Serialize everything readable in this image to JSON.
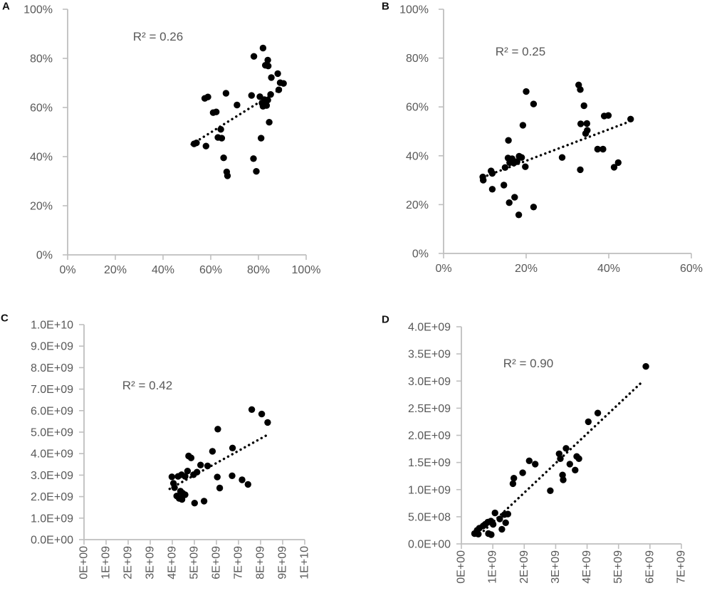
{
  "figure": {
    "background": "#ffffff",
    "text_color": "#595959",
    "axis_color": "#bfbfbf",
    "point_color": "#000000",
    "panel_letter_color": "#111111"
  },
  "chart_data": [
    {
      "panel": "A",
      "type": "scatter",
      "annotation": "R² = 0.26",
      "xlim": [
        0,
        100
      ],
      "ylim": [
        0,
        100
      ],
      "x_tick_values": [
        0,
        20,
        40,
        60,
        80,
        100
      ],
      "x_tick_labels": [
        "0%",
        "20%",
        "40%",
        "60%",
        "80%",
        "100%"
      ],
      "y_tick_values": [
        0,
        20,
        40,
        60,
        80,
        100
      ],
      "y_tick_labels": [
        "0%",
        "20%",
        "40%",
        "60%",
        "80%",
        "100%"
      ],
      "rotated_x_labels": false,
      "grid": false,
      "points": [
        [
          53,
          45.2
        ],
        [
          54,
          45.6
        ],
        [
          58,
          44.3
        ],
        [
          57.5,
          63.7
        ],
        [
          58.8,
          64.3
        ],
        [
          61,
          57.9
        ],
        [
          62.3,
          58.2
        ],
        [
          63,
          47.8
        ],
        [
          64.6,
          47.5
        ],
        [
          64.2,
          51.1
        ],
        [
          65.4,
          39.5
        ],
        [
          66.4,
          65.8
        ],
        [
          66.7,
          33.8
        ],
        [
          67,
          32.2
        ],
        [
          71,
          61
        ],
        [
          77.1,
          64.9
        ],
        [
          78.1,
          80.8
        ],
        [
          77.9,
          39.2
        ],
        [
          79.1,
          34
        ],
        [
          80.6,
          64.4
        ],
        [
          81.1,
          47.5
        ],
        [
          81.5,
          61.8
        ],
        [
          81.9,
          60.5
        ],
        [
          81.9,
          84.2
        ],
        [
          82.5,
          63.2
        ],
        [
          82.9,
          77.2
        ],
        [
          82.9,
          61.7
        ],
        [
          83.4,
          60.8
        ],
        [
          83.9,
          63
        ],
        [
          83.9,
          79.3
        ],
        [
          84.1,
          76.9
        ],
        [
          84.5,
          54
        ],
        [
          85.1,
          65.3
        ],
        [
          85.4,
          72.2
        ],
        [
          88.1,
          73.8
        ],
        [
          88.5,
          67.2
        ],
        [
          89.1,
          70.1
        ],
        [
          90.5,
          69.8
        ]
      ],
      "trendline": {
        "style": "dotted",
        "x1": 52,
        "y1": 45,
        "x2": 90,
        "y2": 68
      }
    },
    {
      "panel": "B",
      "type": "scatter",
      "annotation": "R² = 0.25",
      "xlim": [
        0,
        60
      ],
      "ylim": [
        0,
        100
      ],
      "x_tick_values": [
        0,
        20,
        40,
        60
      ],
      "x_tick_labels": [
        "0%",
        "20%",
        "40%",
        "60%"
      ],
      "y_tick_values": [
        0,
        20,
        40,
        60,
        80,
        100
      ],
      "y_tick_labels": [
        "0%",
        "20%",
        "40%",
        "60%",
        "80%",
        "100%"
      ],
      "rotated_x_labels": false,
      "grid": false,
      "points": [
        [
          9.5,
          31.3
        ],
        [
          9.6,
          30
        ],
        [
          11.5,
          33.8
        ],
        [
          11.8,
          32.8
        ],
        [
          11.8,
          26.3
        ],
        [
          14.6,
          28
        ],
        [
          14.9,
          35.2
        ],
        [
          15.6,
          39.1
        ],
        [
          15.7,
          46.3
        ],
        [
          15.9,
          20.8
        ],
        [
          16,
          37.2
        ],
        [
          16.6,
          38.8
        ],
        [
          17,
          37
        ],
        [
          17.2,
          23
        ],
        [
          17.8,
          37.6
        ],
        [
          18.2,
          15.8
        ],
        [
          18.3,
          39.8
        ],
        [
          18.9,
          39.3
        ],
        [
          19.2,
          52.5
        ],
        [
          19.8,
          35.5
        ],
        [
          20,
          66.3
        ],
        [
          21.8,
          61.2
        ],
        [
          21.8,
          19
        ],
        [
          28.7,
          39.3
        ],
        [
          32.7,
          69
        ],
        [
          33.1,
          67.1
        ],
        [
          33.1,
          34.3
        ],
        [
          33.2,
          53.1
        ],
        [
          34,
          60.5
        ],
        [
          34.4,
          49.1
        ],
        [
          34.7,
          53.2
        ],
        [
          34.8,
          50.4
        ],
        [
          37.3,
          42.7
        ],
        [
          38.6,
          42.7
        ],
        [
          38.9,
          56.3
        ],
        [
          39.9,
          56.5
        ],
        [
          41.3,
          35.3
        ],
        [
          42.3,
          37.2
        ],
        [
          45.3,
          55
        ]
      ],
      "trendline": {
        "style": "dotted",
        "x1": 9.5,
        "y1": 31.2,
        "x2": 45,
        "y2": 54
      }
    },
    {
      "panel": "C",
      "type": "scatter",
      "annotation": "R² = 0.42",
      "xlim": [
        0,
        10
      ],
      "ylim": [
        0,
        10
      ],
      "unit": "1E+09",
      "x_tick_values": [
        0,
        1,
        2,
        3,
        4,
        5,
        6,
        7,
        8,
        9,
        10
      ],
      "x_tick_labels": [
        "0E+00",
        "1E+09",
        "2E+09",
        "3E+09",
        "4E+09",
        "5E+09",
        "6E+09",
        "7E+09",
        "8E+09",
        "9E+09",
        "1E+10"
      ],
      "y_tick_values": [
        0,
        1,
        2,
        3,
        4,
        5,
        6,
        7,
        8,
        9,
        10
      ],
      "y_tick_labels": [
        "0.0E+00",
        "1.0E+09",
        "2.0E+09",
        "3.0E+09",
        "4.0E+09",
        "5.0E+09",
        "6.0E+09",
        "7.0E+09",
        "8.0E+09",
        "9.0E+09",
        "1.0E+10"
      ],
      "rotated_x_labels": true,
      "grid": false,
      "points": [
        [
          3.98,
          2.92
        ],
        [
          4.05,
          2.62
        ],
        [
          4.1,
          2.42
        ],
        [
          4.2,
          2.03
        ],
        [
          4.26,
          2.94
        ],
        [
          4.31,
          1.92
        ],
        [
          4.37,
          2.25
        ],
        [
          4.42,
          3.02
        ],
        [
          4.44,
          1.87
        ],
        [
          4.47,
          2.16
        ],
        [
          4.58,
          2.94
        ],
        [
          4.58,
          2.09
        ],
        [
          4.69,
          3.19
        ],
        [
          4.74,
          3.89
        ],
        [
          4.85,
          3.8
        ],
        [
          4.96,
          3.02
        ],
        [
          5.01,
          1.7
        ],
        [
          5.12,
          3.14
        ],
        [
          5.28,
          3.47
        ],
        [
          5.44,
          1.79
        ],
        [
          5.6,
          3.43
        ],
        [
          5.82,
          4.11
        ],
        [
          6.04,
          2.91
        ],
        [
          6.06,
          5.14
        ],
        [
          6.15,
          2.4
        ],
        [
          6.71,
          2.97
        ],
        [
          6.73,
          4.26
        ],
        [
          7.16,
          2.78
        ],
        [
          7.43,
          2.57
        ],
        [
          7.6,
          6.05
        ],
        [
          8.05,
          5.84
        ],
        [
          8.32,
          5.45
        ]
      ],
      "trendline": {
        "style": "dotted",
        "x1": 3.88,
        "y1": 2.36,
        "x2": 8.32,
        "y2": 4.88
      }
    },
    {
      "panel": "D",
      "type": "scatter",
      "annotation": "R² = 0.90",
      "xlim": [
        0,
        7
      ],
      "ylim": [
        0,
        4
      ],
      "unit": "1E+09",
      "x_tick_values": [
        0,
        1,
        2,
        3,
        4,
        5,
        6,
        7
      ],
      "x_tick_labels": [
        "0E+00",
        "1E+09",
        "2E+09",
        "3E+09",
        "4E+09",
        "5E+09",
        "6E+09",
        "7E+09"
      ],
      "y_tick_values": [
        0,
        0.5,
        1,
        1.5,
        2,
        2.5,
        3,
        3.5,
        4
      ],
      "y_tick_labels": [
        "0.0E+00",
        "5.0E+08",
        "1.0E+09",
        "1.5E+09",
        "2.0E+09",
        "2.5E+09",
        "3.0E+09",
        "3.5E+09",
        "4.0E+09"
      ],
      "rotated_x_labels": true,
      "grid": false,
      "points": [
        [
          0.42,
          0.19
        ],
        [
          0.5,
          0.25
        ],
        [
          0.54,
          0.18
        ],
        [
          0.57,
          0.29
        ],
        [
          0.69,
          0.33
        ],
        [
          0.76,
          0.36
        ],
        [
          0.84,
          0.4
        ],
        [
          0.86,
          0.19
        ],
        [
          0.94,
          0.42
        ],
        [
          0.95,
          0.17
        ],
        [
          1.01,
          0.36
        ],
        [
          1.07,
          0.57
        ],
        [
          1.22,
          0.46
        ],
        [
          1.29,
          0.27
        ],
        [
          1.37,
          0.54
        ],
        [
          1.41,
          0.39
        ],
        [
          1.48,
          0.55
        ],
        [
          1.64,
          1.11
        ],
        [
          1.67,
          1.21
        ],
        [
          1.95,
          1.31
        ],
        [
          2.16,
          1.53
        ],
        [
          2.35,
          1.47
        ],
        [
          2.83,
          0.98
        ],
        [
          3.11,
          1.66
        ],
        [
          3.15,
          1.57
        ],
        [
          3.22,
          1.27
        ],
        [
          3.24,
          1.18
        ],
        [
          3.33,
          1.76
        ],
        [
          3.45,
          1.47
        ],
        [
          3.62,
          1.36
        ],
        [
          3.67,
          1.61
        ],
        [
          3.74,
          1.57
        ],
        [
          4.04,
          2.25
        ],
        [
          4.34,
          2.41
        ],
        [
          5.87,
          3.27
        ]
      ],
      "trendline": {
        "style": "dotted",
        "x1": 0.6,
        "y1": 0.18,
        "x2": 5.78,
        "y2": 3.0
      }
    }
  ]
}
